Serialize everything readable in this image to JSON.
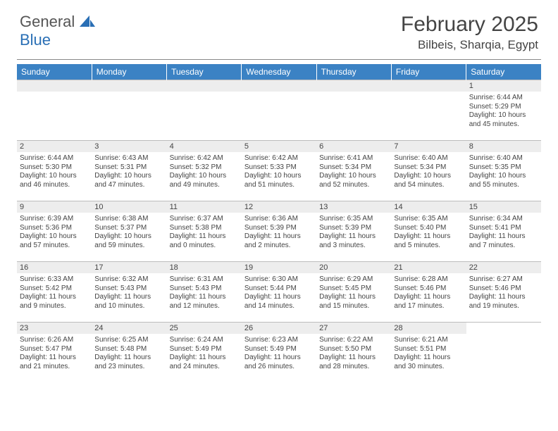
{
  "brand": {
    "general": "General",
    "blue": "Blue"
  },
  "title": "February 2025",
  "location": "Bilbeis, Sharqia, Egypt",
  "day_headers": [
    "Sunday",
    "Monday",
    "Tuesday",
    "Wednesday",
    "Thursday",
    "Friday",
    "Saturday"
  ],
  "colors": {
    "header_bg": "#3b82c4",
    "header_text": "#ffffff",
    "daynum_bg": "#ededed",
    "border": "#bcbcbc",
    "text": "#444444"
  },
  "weeks": [
    [
      null,
      null,
      null,
      null,
      null,
      null,
      {
        "n": "1",
        "sunrise": "Sunrise: 6:44 AM",
        "sunset": "Sunset: 5:29 PM",
        "daylight": "Daylight: 10 hours and 45 minutes."
      }
    ],
    [
      {
        "n": "2",
        "sunrise": "Sunrise: 6:44 AM",
        "sunset": "Sunset: 5:30 PM",
        "daylight": "Daylight: 10 hours and 46 minutes."
      },
      {
        "n": "3",
        "sunrise": "Sunrise: 6:43 AM",
        "sunset": "Sunset: 5:31 PM",
        "daylight": "Daylight: 10 hours and 47 minutes."
      },
      {
        "n": "4",
        "sunrise": "Sunrise: 6:42 AM",
        "sunset": "Sunset: 5:32 PM",
        "daylight": "Daylight: 10 hours and 49 minutes."
      },
      {
        "n": "5",
        "sunrise": "Sunrise: 6:42 AM",
        "sunset": "Sunset: 5:33 PM",
        "daylight": "Daylight: 10 hours and 51 minutes."
      },
      {
        "n": "6",
        "sunrise": "Sunrise: 6:41 AM",
        "sunset": "Sunset: 5:34 PM",
        "daylight": "Daylight: 10 hours and 52 minutes."
      },
      {
        "n": "7",
        "sunrise": "Sunrise: 6:40 AM",
        "sunset": "Sunset: 5:34 PM",
        "daylight": "Daylight: 10 hours and 54 minutes."
      },
      {
        "n": "8",
        "sunrise": "Sunrise: 6:40 AM",
        "sunset": "Sunset: 5:35 PM",
        "daylight": "Daylight: 10 hours and 55 minutes."
      }
    ],
    [
      {
        "n": "9",
        "sunrise": "Sunrise: 6:39 AM",
        "sunset": "Sunset: 5:36 PM",
        "daylight": "Daylight: 10 hours and 57 minutes."
      },
      {
        "n": "10",
        "sunrise": "Sunrise: 6:38 AM",
        "sunset": "Sunset: 5:37 PM",
        "daylight": "Daylight: 10 hours and 59 minutes."
      },
      {
        "n": "11",
        "sunrise": "Sunrise: 6:37 AM",
        "sunset": "Sunset: 5:38 PM",
        "daylight": "Daylight: 11 hours and 0 minutes."
      },
      {
        "n": "12",
        "sunrise": "Sunrise: 6:36 AM",
        "sunset": "Sunset: 5:39 PM",
        "daylight": "Daylight: 11 hours and 2 minutes."
      },
      {
        "n": "13",
        "sunrise": "Sunrise: 6:35 AM",
        "sunset": "Sunset: 5:39 PM",
        "daylight": "Daylight: 11 hours and 3 minutes."
      },
      {
        "n": "14",
        "sunrise": "Sunrise: 6:35 AM",
        "sunset": "Sunset: 5:40 PM",
        "daylight": "Daylight: 11 hours and 5 minutes."
      },
      {
        "n": "15",
        "sunrise": "Sunrise: 6:34 AM",
        "sunset": "Sunset: 5:41 PM",
        "daylight": "Daylight: 11 hours and 7 minutes."
      }
    ],
    [
      {
        "n": "16",
        "sunrise": "Sunrise: 6:33 AM",
        "sunset": "Sunset: 5:42 PM",
        "daylight": "Daylight: 11 hours and 9 minutes."
      },
      {
        "n": "17",
        "sunrise": "Sunrise: 6:32 AM",
        "sunset": "Sunset: 5:43 PM",
        "daylight": "Daylight: 11 hours and 10 minutes."
      },
      {
        "n": "18",
        "sunrise": "Sunrise: 6:31 AM",
        "sunset": "Sunset: 5:43 PM",
        "daylight": "Daylight: 11 hours and 12 minutes."
      },
      {
        "n": "19",
        "sunrise": "Sunrise: 6:30 AM",
        "sunset": "Sunset: 5:44 PM",
        "daylight": "Daylight: 11 hours and 14 minutes."
      },
      {
        "n": "20",
        "sunrise": "Sunrise: 6:29 AM",
        "sunset": "Sunset: 5:45 PM",
        "daylight": "Daylight: 11 hours and 15 minutes."
      },
      {
        "n": "21",
        "sunrise": "Sunrise: 6:28 AM",
        "sunset": "Sunset: 5:46 PM",
        "daylight": "Daylight: 11 hours and 17 minutes."
      },
      {
        "n": "22",
        "sunrise": "Sunrise: 6:27 AM",
        "sunset": "Sunset: 5:46 PM",
        "daylight": "Daylight: 11 hours and 19 minutes."
      }
    ],
    [
      {
        "n": "23",
        "sunrise": "Sunrise: 6:26 AM",
        "sunset": "Sunset: 5:47 PM",
        "daylight": "Daylight: 11 hours and 21 minutes."
      },
      {
        "n": "24",
        "sunrise": "Sunrise: 6:25 AM",
        "sunset": "Sunset: 5:48 PM",
        "daylight": "Daylight: 11 hours and 23 minutes."
      },
      {
        "n": "25",
        "sunrise": "Sunrise: 6:24 AM",
        "sunset": "Sunset: 5:49 PM",
        "daylight": "Daylight: 11 hours and 24 minutes."
      },
      {
        "n": "26",
        "sunrise": "Sunrise: 6:23 AM",
        "sunset": "Sunset: 5:49 PM",
        "daylight": "Daylight: 11 hours and 26 minutes."
      },
      {
        "n": "27",
        "sunrise": "Sunrise: 6:22 AM",
        "sunset": "Sunset: 5:50 PM",
        "daylight": "Daylight: 11 hours and 28 minutes."
      },
      {
        "n": "28",
        "sunrise": "Sunrise: 6:21 AM",
        "sunset": "Sunset: 5:51 PM",
        "daylight": "Daylight: 11 hours and 30 minutes."
      },
      null
    ]
  ]
}
